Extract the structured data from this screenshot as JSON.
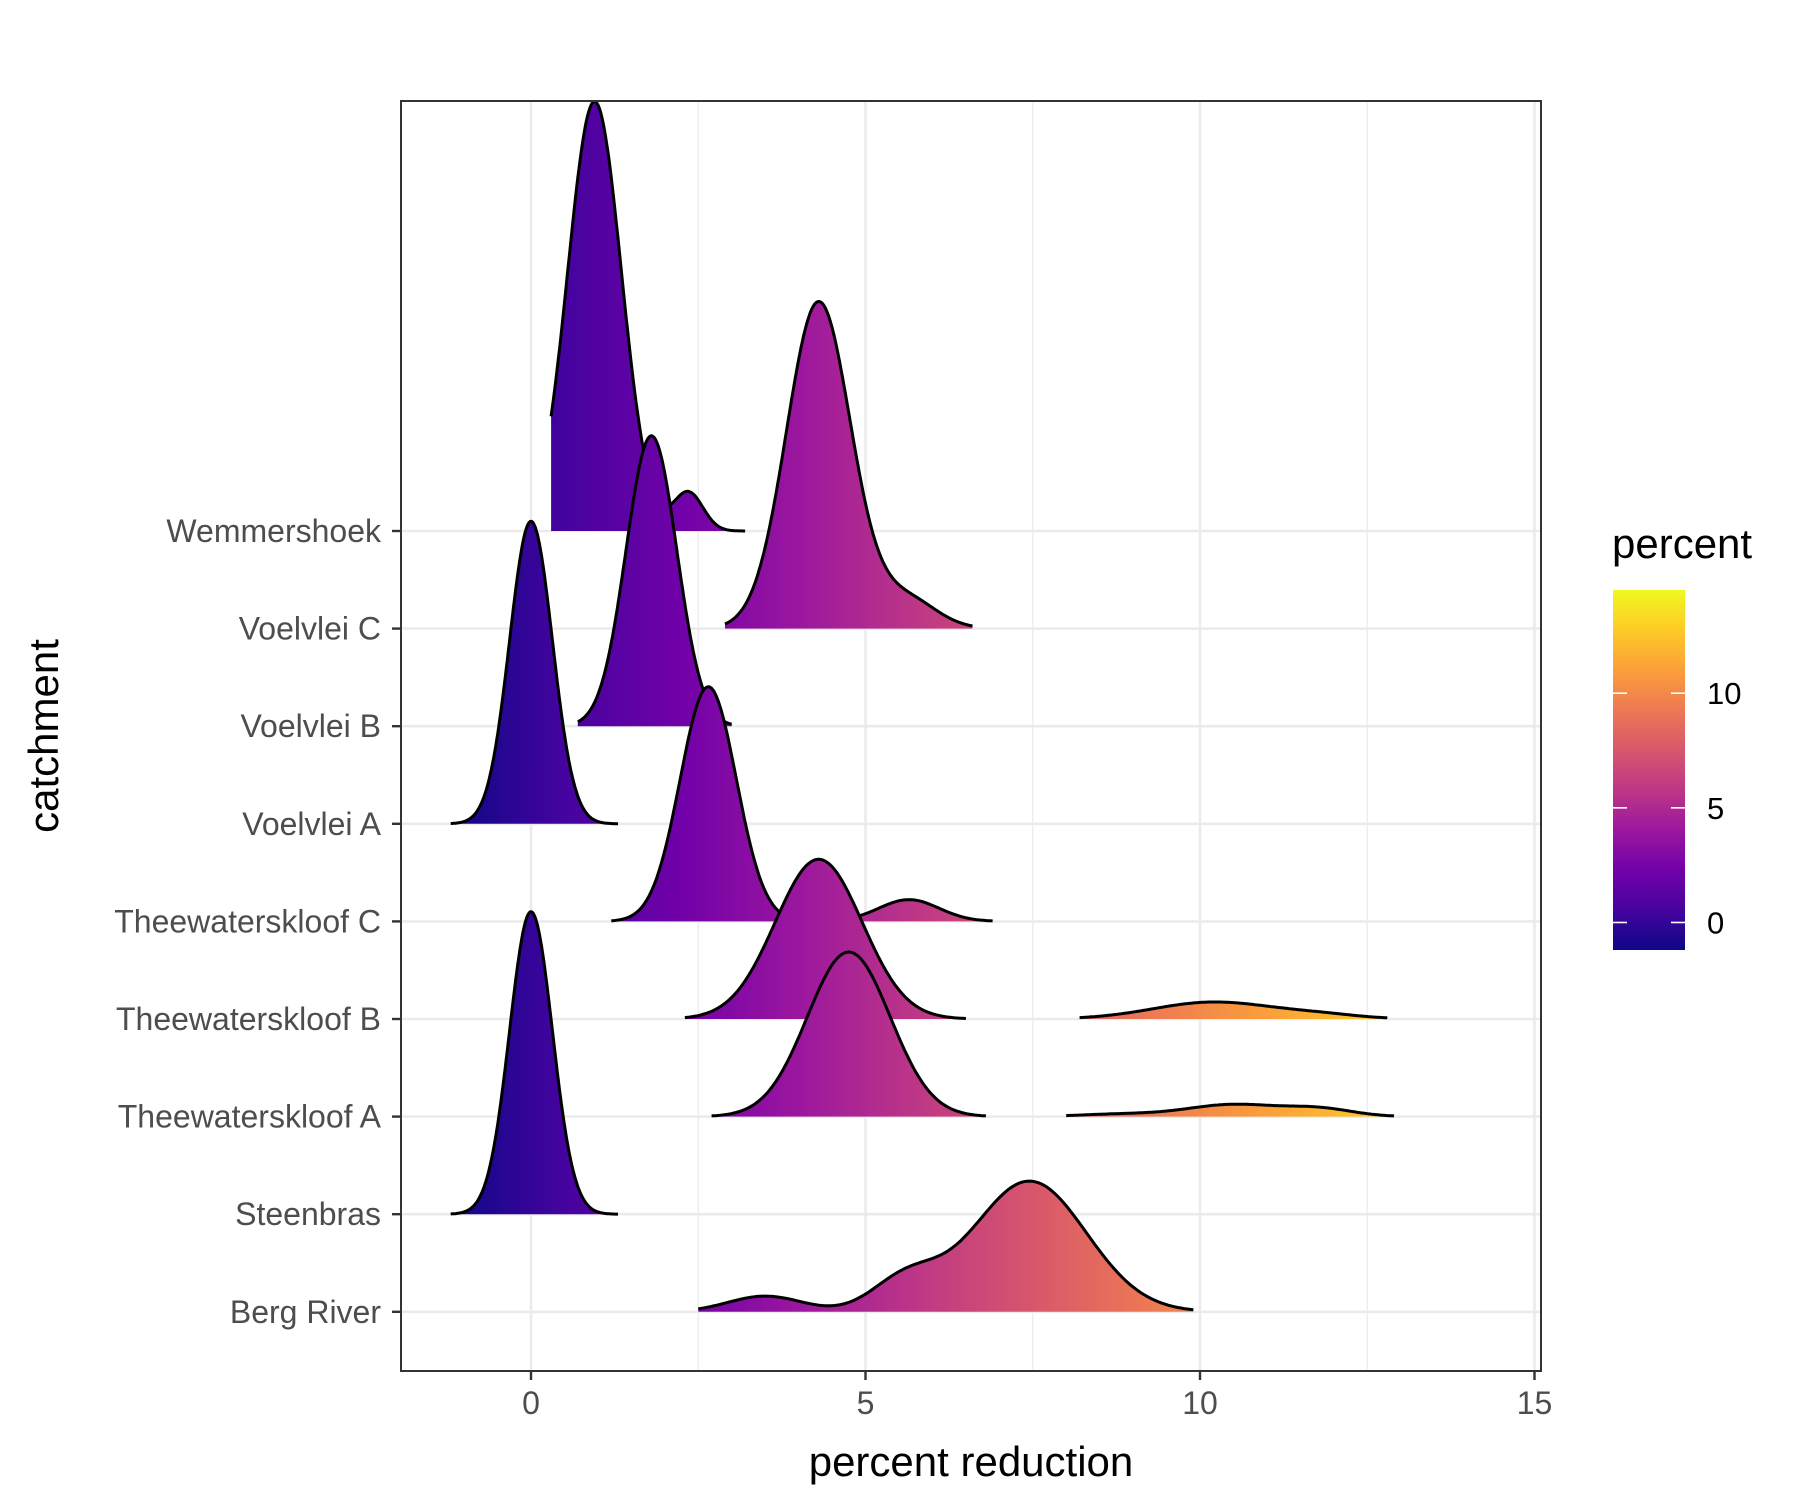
{
  "chart_data": {
    "type": "ridgeline",
    "title": "",
    "xlabel": "percent reduction",
    "ylabel": "catchment",
    "xlim": [
      -2,
      15.2
    ],
    "x_ticks": [
      0,
      5,
      10,
      15
    ],
    "categories": [
      "Berg River",
      "Steenbras",
      "Theewaterskloof A",
      "Theewaterskloof B",
      "Theewaterskloof C",
      "Voelvlei A",
      "Voelvlei B",
      "Voelvlei C",
      "Wemmershoek"
    ],
    "series": [
      {
        "name": "Berg River",
        "x_range": [
          2.5,
          9.9
        ],
        "components": [
          {
            "mean": 3.5,
            "sd": 0.55,
            "height": 0.13
          },
          {
            "mean": 5.6,
            "sd": 0.5,
            "height": 0.26
          },
          {
            "mean": 7.45,
            "sd": 0.85,
            "height": 1.08
          }
        ]
      },
      {
        "name": "Steenbras",
        "x_range": [
          -1.2,
          1.3
        ],
        "components": [
          {
            "mean": 0.0,
            "sd": 0.32,
            "height": 2.5
          }
        ]
      },
      {
        "name": "Theewaterskloof A",
        "x_range": [
          2.7,
          6.8
        ],
        "components": [
          {
            "mean": 4.75,
            "sd": 0.62,
            "height": 1.36
          }
        ]
      },
      {
        "name": "Theewaterskloof A (upper)",
        "x_range": [
          8.0,
          12.9
        ],
        "components": [
          {
            "mean": 10.5,
            "sd": 0.7,
            "height": 0.1
          },
          {
            "mean": 11.8,
            "sd": 0.5,
            "height": 0.06
          },
          {
            "mean": 8.8,
            "sd": 0.6,
            "height": 0.02
          }
        ]
      },
      {
        "name": "Theewaterskloof B",
        "x_range": [
          2.3,
          6.5
        ],
        "components": [
          {
            "mean": 4.3,
            "sd": 0.65,
            "height": 1.32
          }
        ]
      },
      {
        "name": "Theewaterskloof B (upper)",
        "x_range": [
          8.2,
          12.8
        ],
        "components": [
          {
            "mean": 10.2,
            "sd": 0.9,
            "height": 0.14
          },
          {
            "mean": 11.8,
            "sd": 0.6,
            "height": 0.03
          }
        ]
      },
      {
        "name": "Theewaterskloof C",
        "x_range": [
          1.2,
          6.9
        ],
        "components": [
          {
            "mean": 2.65,
            "sd": 0.42,
            "height": 1.94
          },
          {
            "mean": 5.65,
            "sd": 0.45,
            "height": 0.18
          }
        ]
      },
      {
        "name": "Voelvlei A",
        "x_range": [
          -1.2,
          1.3
        ],
        "components": [
          {
            "mean": 0.0,
            "sd": 0.32,
            "height": 2.5
          }
        ]
      },
      {
        "name": "Voelvlei B",
        "x_range": [
          0.7,
          3.0
        ],
        "components": [
          {
            "mean": 1.8,
            "sd": 0.38,
            "height": 2.4
          }
        ]
      },
      {
        "name": "Voelvlei C",
        "x_range": [
          2.9,
          6.6
        ],
        "components": [
          {
            "mean": 4.3,
            "sd": 0.48,
            "height": 2.7
          },
          {
            "mean": 5.6,
            "sd": 0.45,
            "height": 0.25
          }
        ]
      },
      {
        "name": "Wemmershoek",
        "x_range": [
          0.3,
          3.2
        ],
        "components": [
          {
            "mean": 0.95,
            "sd": 0.4,
            "height": 3.55
          },
          {
            "mean": 2.35,
            "sd": 0.22,
            "height": 0.32
          }
        ]
      }
    ],
    "legend": {
      "title": "percent",
      "ticks": [
        0,
        5,
        10
      ],
      "min": -1.2,
      "max": 14.5,
      "position": "right"
    },
    "colors": {
      "gradient": [
        "#0d0887",
        "#46039f",
        "#7201a8",
        "#9c179e",
        "#bd3786",
        "#d8576b",
        "#ed7953",
        "#fb9f3a",
        "#fdca26",
        "#f0f921"
      ],
      "grid": "#ebebeb",
      "panel_border": "#333333",
      "outline": "#000000"
    }
  }
}
